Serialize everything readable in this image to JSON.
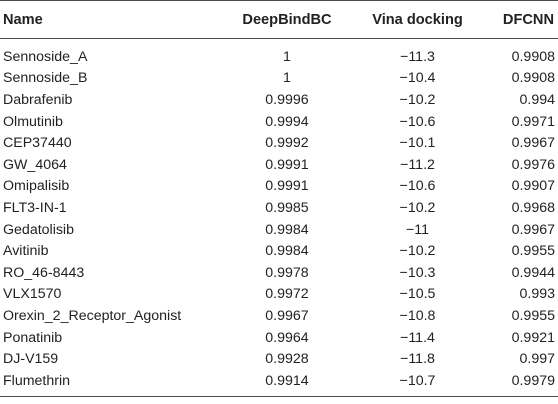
{
  "table": {
    "headers": [
      "Name",
      "DeepBindBC",
      "Vina docking",
      "DFCNN"
    ],
    "rows": [
      [
        "Sennoside_A",
        "1",
        "−11.3",
        "0.9908"
      ],
      [
        "Sennoside_B",
        "1",
        "−10.4",
        "0.9908"
      ],
      [
        "Dabrafenib",
        "0.9996",
        "−10.2",
        "0.994"
      ],
      [
        "Olmutinib",
        "0.9994",
        "−10.6",
        "0.9971"
      ],
      [
        "CEP37440",
        "0.9992",
        "−10.1",
        "0.9967"
      ],
      [
        "GW_4064",
        "0.9991",
        "−11.2",
        "0.9976"
      ],
      [
        "Omipalisib",
        "0.9991",
        "−10.6",
        "0.9907"
      ],
      [
        "FLT3-IN-1",
        "0.9985",
        "−10.2",
        "0.9968"
      ],
      [
        "Gedatolisib",
        "0.9984",
        "−11",
        "0.9967"
      ],
      [
        "Avitinib",
        "0.9984",
        "−10.2",
        "0.9955"
      ],
      [
        "RO_46-8443",
        "0.9978",
        "−10.3",
        "0.9944"
      ],
      [
        "VLX1570",
        "0.9972",
        "−10.5",
        "0.993"
      ],
      [
        "Orexin_2_Receptor_Agonist",
        "0.9967",
        "−10.8",
        "0.9955"
      ],
      [
        "Ponatinib",
        "0.9964",
        "−11.4",
        "0.9921"
      ],
      [
        "DJ-V159",
        "0.9928",
        "−11.8",
        "0.997"
      ],
      [
        "Flumethrin",
        "0.9914",
        "−10.7",
        "0.9979"
      ]
    ]
  },
  "colors": {
    "text": "#222222",
    "rule": "#4a4a4a",
    "background": "#ffffff"
  }
}
